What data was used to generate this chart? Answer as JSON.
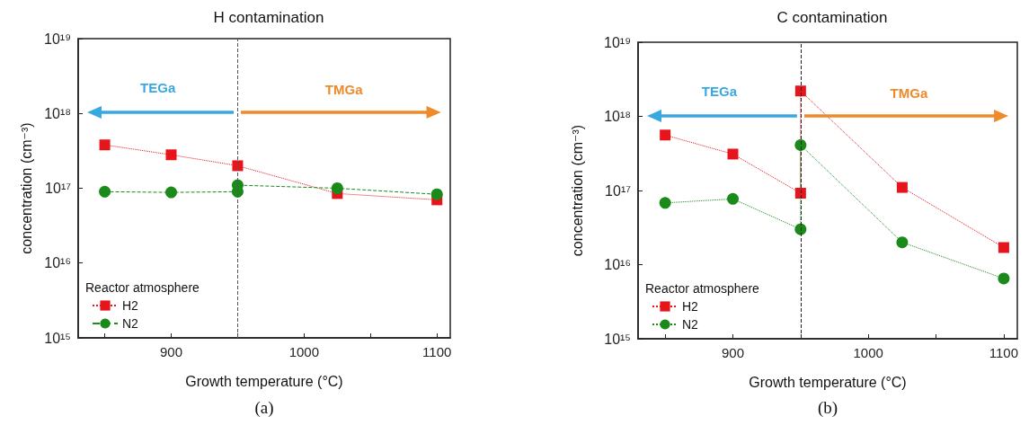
{
  "chart_data": [
    {
      "type": "line",
      "title": "H contamination",
      "xlabel": "Growth temperature (°C)",
      "ylabel": "concentration (cm⁻³)",
      "legend_title": "Reactor atmosphere",
      "legend": "bottom left",
      "log": "y",
      "grid": false,
      "xlim": [
        830,
        1110
      ],
      "xticks": [
        {
          "value": 850,
          "label": null
        },
        900,
        {
          "value": 950,
          "label": null
        },
        1000,
        {
          "value": 1050,
          "label": null
        },
        1100
      ],
      "ylim": [
        1000000000000000.0,
        1e+19
      ],
      "yticks": [
        {
          "value": 1000000000000000.0,
          "label": "10¹⁵"
        },
        {
          "value": 1e+16,
          "label": "10¹⁶"
        },
        {
          "value": 1e+17,
          "label": "10¹⁷"
        },
        {
          "value": 1e+18,
          "label": "10¹⁸"
        },
        {
          "value": 1e+19,
          "label": "10¹⁹"
        }
      ],
      "ref_lines": [
        {
          "axis": "x",
          "value": 950,
          "color": "#555555",
          "line_style": "dashed"
        }
      ],
      "annotations": [
        "TEGa",
        "TMGa",
        "(a)"
      ],
      "series": [
        {
          "name": "H2",
          "color": "#e8141b",
          "marker": "square",
          "line_style": "dotted",
          "x": [
            850,
            900,
            950,
            1025,
            1100
          ],
          "values": [
            3.8e+17,
            2.8e+17,
            2e+17,
            8.5e+16,
            7e+16
          ]
        },
        {
          "name": "N2",
          "color": "#1a8a1a",
          "marker": "circle",
          "line_style": "dashed",
          "x": [
            850,
            900,
            950,
            950,
            1025,
            1100
          ],
          "values": [
            9e+16,
            8.8e+16,
            9e+16,
            1.1e+17,
            1e+17,
            8.3e+16
          ]
        }
      ]
    },
    {
      "type": "line",
      "title": "C contamination",
      "xlabel": "Growth temperature (°C)",
      "ylabel": "concentration (cm⁻³)",
      "legend_title": "Reactor atmosphere",
      "legend": "bottom left",
      "log": "y",
      "grid": false,
      "xlim": [
        830,
        1110
      ],
      "xticks": [
        {
          "value": 850,
          "label": null
        },
        900,
        {
          "value": 950,
          "label": null
        },
        1000,
        {
          "value": 1050,
          "label": null
        },
        1100
      ],
      "ylim": [
        1000000000000000.0,
        1e+19
      ],
      "yticks": [
        {
          "value": 1000000000000000.0,
          "label": "10¹⁵"
        },
        {
          "value": 1e+16,
          "label": "10¹⁶"
        },
        {
          "value": 1e+17,
          "label": "10¹⁷"
        },
        {
          "value": 1e+18,
          "label": "10¹⁸"
        },
        {
          "value": 1e+19,
          "label": "10¹⁹"
        }
      ],
      "ref_lines": [
        {
          "axis": "x",
          "value": 950,
          "color": "#222222",
          "line_style": "dashed"
        }
      ],
      "annotations": [
        "TEGa",
        "TMGa",
        "(b)"
      ],
      "series": [
        {
          "name": "H2",
          "color": "#e8141b",
          "marker": "square",
          "line_style": "dotted",
          "x": [
            850,
            900,
            950,
            950,
            1025,
            1100
          ],
          "values": [
            5.6e+17,
            3.1e+17,
            9.2e+16,
            2.2e+18,
            1.1e+17,
            1.7e+16
          ]
        },
        {
          "name": "N2",
          "color": "#1a8a1a",
          "marker": "circle",
          "line_style": "dotted",
          "x": [
            850,
            900,
            950,
            950,
            1025,
            1100
          ],
          "values": [
            6.8e+16,
            7.7e+16,
            3e+16,
            4.1e+17,
            2e+16,
            6500000000000000.0
          ]
        }
      ]
    }
  ]
}
